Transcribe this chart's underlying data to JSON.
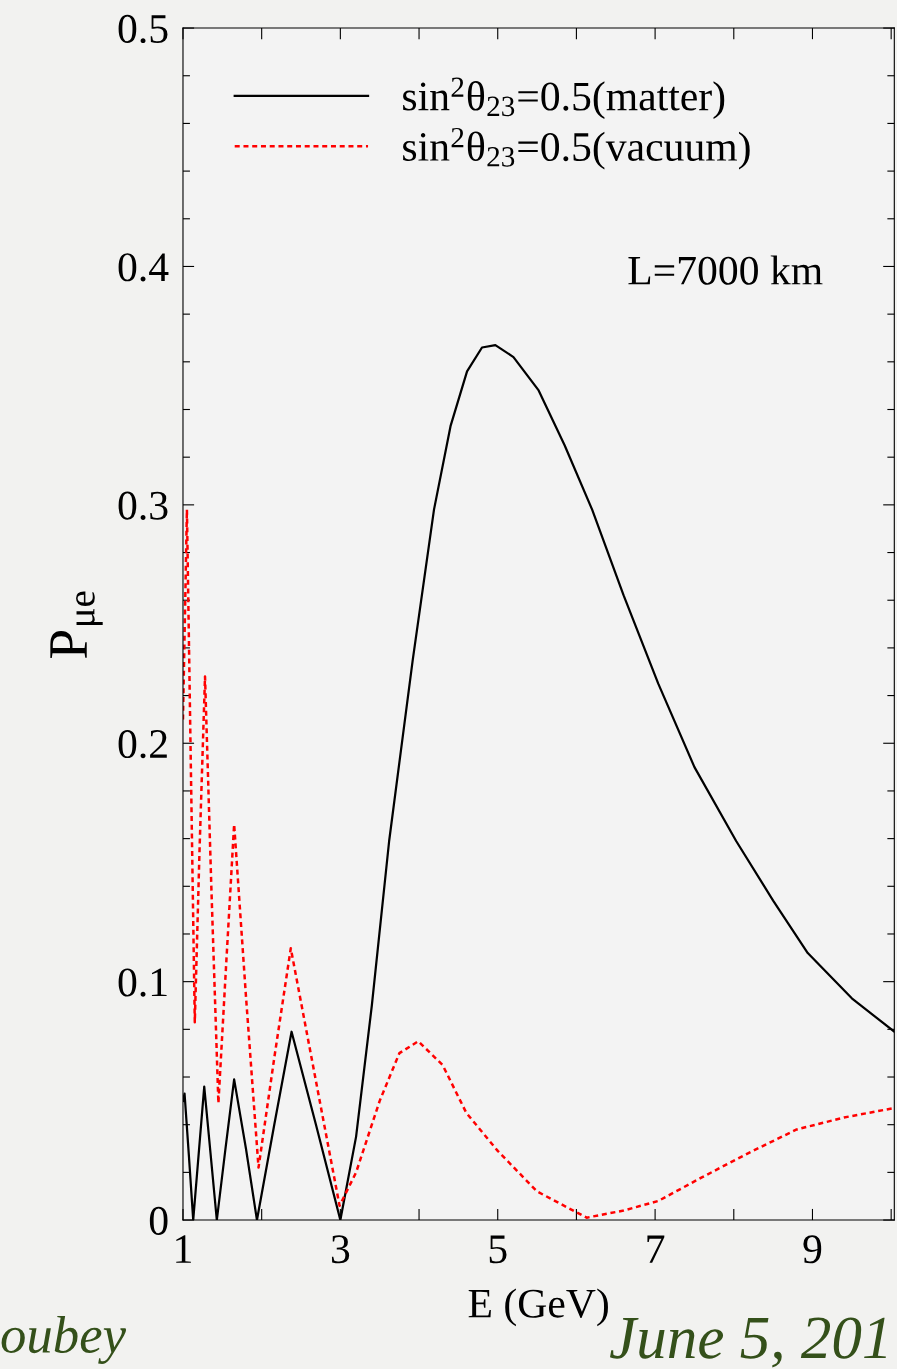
{
  "chart_data": {
    "type": "line",
    "xlabel": "E (GeV)",
    "ylabel": "P$_{μe}$",
    "xlim": [
      1,
      10.04
    ],
    "ylim": [
      0,
      0.5
    ],
    "xticks": [
      1,
      {
        "value": 2,
        "label": null
      },
      3,
      {
        "value": 4,
        "label": null
      },
      5,
      {
        "value": 6,
        "label": null
      },
      7,
      {
        "value": 8,
        "label": null
      },
      9,
      {
        "value": 10,
        "label": null
      }
    ],
    "yticks": [
      0,
      {
        "value": 0.02,
        "label": null
      },
      {
        "value": 0.04,
        "label": null
      },
      {
        "value": 0.06,
        "label": null
      },
      {
        "value": 0.08,
        "label": null
      },
      0.1,
      {
        "value": 0.12,
        "label": null
      },
      {
        "value": 0.14,
        "label": null
      },
      {
        "value": 0.16,
        "label": null
      },
      {
        "value": 0.18,
        "label": null
      },
      0.2,
      {
        "value": 0.22,
        "label": null
      },
      {
        "value": 0.24,
        "label": null
      },
      {
        "value": 0.26,
        "label": null
      },
      {
        "value": 0.28,
        "label": null
      },
      0.3,
      {
        "value": 0.32,
        "label": null
      },
      {
        "value": 0.34,
        "label": null
      },
      {
        "value": 0.36,
        "label": null
      },
      {
        "value": 0.38,
        "label": null
      },
      0.4,
      {
        "value": 0.42,
        "label": null
      },
      {
        "value": 0.44,
        "label": null
      },
      {
        "value": 0.46,
        "label": null
      },
      {
        "value": 0.48,
        "label": null
      },
      0.5
    ],
    "grid": false,
    "legend": "top left",
    "marker": "none",
    "series": [
      {
        "name": "sin$^{2}$θ$_{23}$=0.5(matter)",
        "color": "#000000",
        "line_style": "solid",
        "x": [
          1.0,
          1.02,
          1.075,
          1.13,
          1.2,
          1.27,
          1.35,
          1.43,
          1.54,
          1.65,
          1.8,
          1.94,
          2.16,
          2.38,
          2.69,
          3.0,
          3.2,
          3.4,
          3.62,
          3.92,
          4.19,
          4.4,
          4.61,
          4.8,
          4.97,
          5.2,
          5.52,
          5.85,
          6.2,
          6.6,
          7.04,
          7.5,
          8.03,
          8.5,
          8.94,
          9.5,
          10.04
        ],
        "values": [
          0.05,
          0.053,
          0.027,
          0,
          0.028,
          0.056,
          0.028,
          0,
          0.03,
          0.059,
          0.03,
          0,
          0.04,
          0.079,
          0.04,
          0,
          0.035,
          0.09,
          0.159,
          0.235,
          0.298,
          0.333,
          0.356,
          0.366,
          0.367,
          0.362,
          0.348,
          0.325,
          0.298,
          0.262,
          0.225,
          0.19,
          0.159,
          0.134,
          0.112,
          0.093,
          0.079
        ]
      },
      {
        "name": "sin$^{2}$θ$_{23}$=0.5(vacuum)",
        "color": "#ff0000",
        "line_style": "dotted",
        "x": [
          1.0,
          1.05,
          1.1,
          1.15,
          1.21,
          1.28,
          1.36,
          1.45,
          1.55,
          1.65,
          1.8,
          1.96,
          2.16,
          2.37,
          2.68,
          2.99,
          3.2,
          3.5,
          3.75,
          3.99,
          4.3,
          4.6,
          5.0,
          5.5,
          6.13,
          6.6,
          7.04,
          7.6,
          8.18,
          8.8,
          9.4,
          10.04
        ],
        "values": [
          0.21,
          0.298,
          0.19,
          0.083,
          0.155,
          0.228,
          0.14,
          0.049,
          0.108,
          0.166,
          0.094,
          0.022,
          0.068,
          0.114,
          0.06,
          0.006,
          0.02,
          0.05,
          0.07,
          0.075,
          0.065,
          0.045,
          0.029,
          0.012,
          0.001,
          0.004,
          0.008,
          0.018,
          0.028,
          0.038,
          0.043,
          0.047
        ]
      }
    ],
    "annotations": [
      "L=7000 km",
      "oubey",
      "June 5, 201"
    ]
  }
}
